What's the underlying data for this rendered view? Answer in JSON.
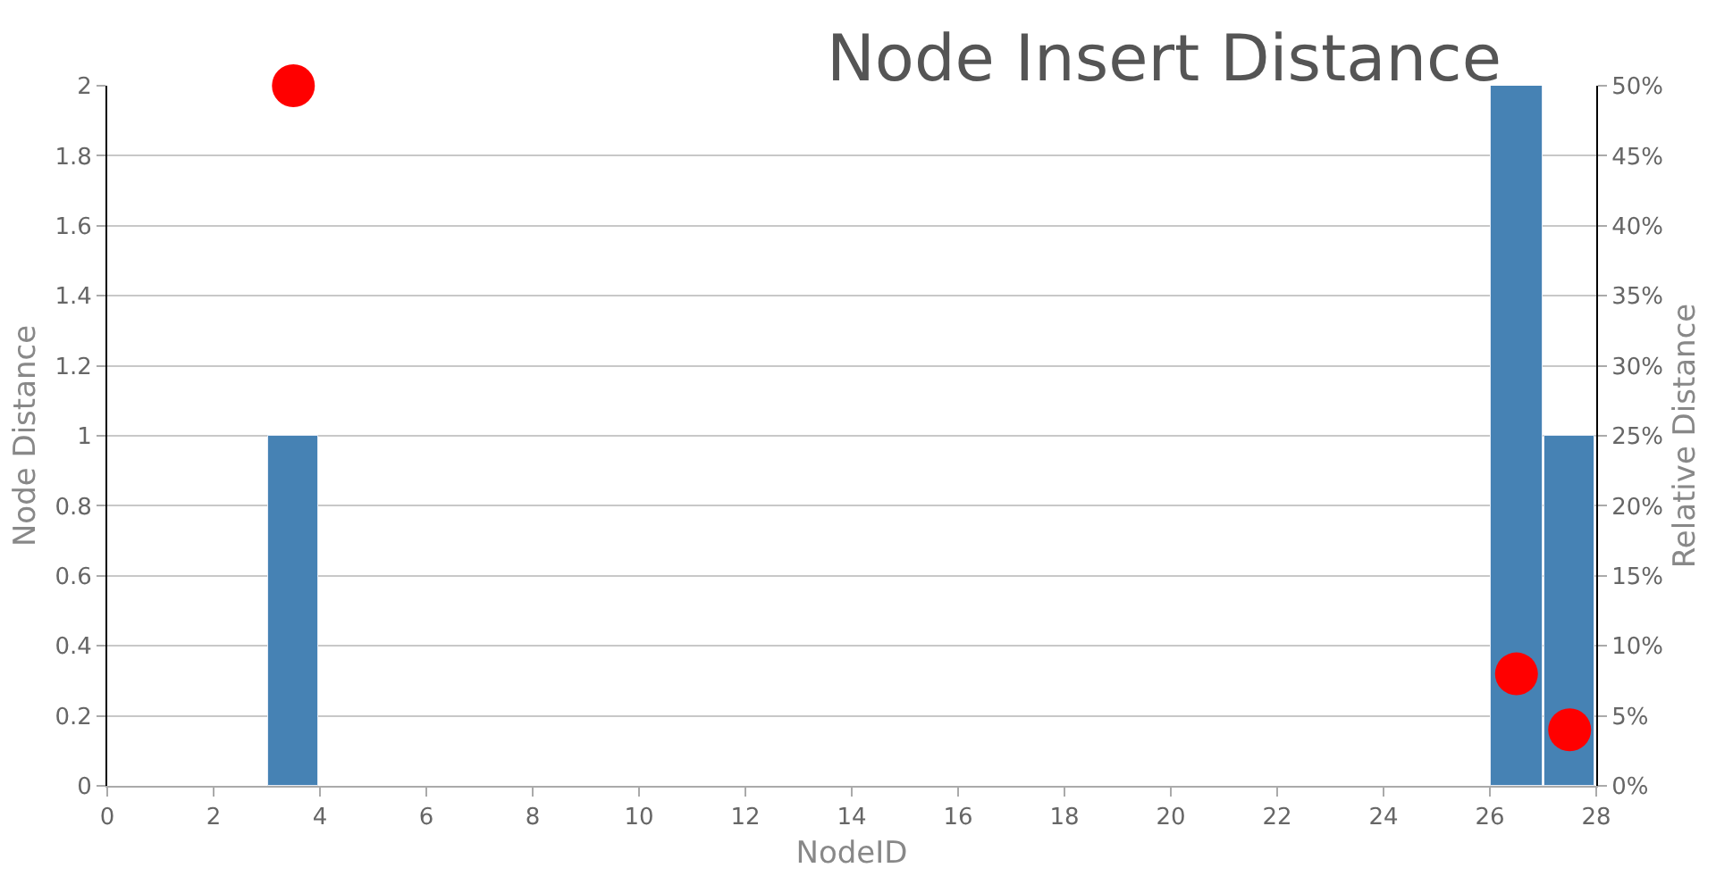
{
  "chart_data": {
    "type": "bar",
    "title": "Node Insert Distance",
    "xlabel": "NodeID",
    "ylabel": "Node Distance",
    "y2label": "Relative Distance",
    "x": [
      3.5,
      26.5,
      27.5
    ],
    "series": [
      {
        "color": "#4682b4",
        "values": [
          1,
          2,
          1
        ]
      },
      {
        "type": "scatter",
        "axis": "y2",
        "color": "#ff0000",
        "marker": "circle",
        "values": [
          50,
          8,
          4
        ]
      }
    ],
    "xlim": [
      0,
      28
    ],
    "xticks": [
      0,
      2,
      4,
      6,
      8,
      10,
      12,
      14,
      16,
      18,
      20,
      22,
      24,
      26,
      28
    ],
    "ylim": [
      0,
      2
    ],
    "yticks": [
      0,
      0.2,
      0.4,
      0.6,
      0.8,
      1,
      1.2,
      1.4,
      1.6,
      1.8,
      2
    ],
    "y2lim": [
      0,
      50
    ],
    "y2ticks": [
      {
        "value": 0,
        "label": "0%"
      },
      {
        "value": 5,
        "label": "5%"
      },
      {
        "value": 10,
        "label": "10%"
      },
      {
        "value": 15,
        "label": "15%"
      },
      {
        "value": 20,
        "label": "20%"
      },
      {
        "value": 25,
        "label": "25%"
      },
      {
        "value": 30,
        "label": "30%"
      },
      {
        "value": 35,
        "label": "35%"
      },
      {
        "value": 40,
        "label": "40%"
      },
      {
        "value": 45,
        "label": "45%"
      },
      {
        "value": 50,
        "label": "50%"
      }
    ],
    "grid": "y"
  }
}
